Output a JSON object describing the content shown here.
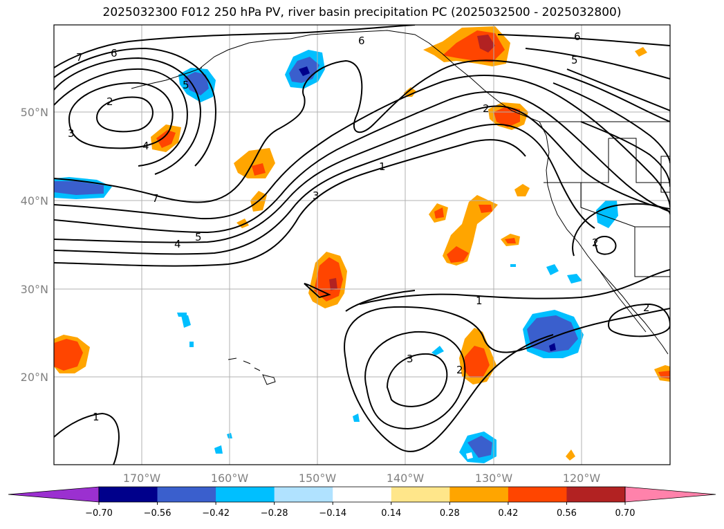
{
  "title": "2025032300 F012 250 hPa PV, river basin precipitation PC (2025032500 - 2025032800)",
  "axes": {
    "lat_labels": [
      "50°N",
      "40°N",
      "30°N",
      "20°N"
    ],
    "lon_labels": [
      "170°W",
      "160°W",
      "150°W",
      "140°W",
      "130°W",
      "120°W"
    ]
  },
  "contour_labels": [
    {
      "text": "7",
      "name": "pv-label-7-nw"
    },
    {
      "text": "6",
      "name": "pv-label-6-nw"
    },
    {
      "text": "2",
      "name": "pv-label-2-low"
    },
    {
      "text": "3",
      "name": "pv-label-3-w"
    },
    {
      "text": "4",
      "name": "pv-label-4-w"
    },
    {
      "text": "5",
      "name": "pv-label-5-aleut"
    },
    {
      "text": "6",
      "name": "pv-label-6-n"
    },
    {
      "text": "7",
      "name": "pv-label-7-mid"
    },
    {
      "text": "4",
      "name": "pv-label-4-mid"
    },
    {
      "text": "5",
      "name": "pv-label-5-mid"
    },
    {
      "text": "3",
      "name": "pv-label-3-jet"
    },
    {
      "text": "1",
      "name": "pv-label-1-jet"
    },
    {
      "text": "2",
      "name": "pv-label-2-coast"
    },
    {
      "text": "6",
      "name": "pv-label-6-ne"
    },
    {
      "text": "5",
      "name": "pv-label-5-ne"
    },
    {
      "text": "2",
      "name": "pv-label-2-cal"
    },
    {
      "text": "1",
      "name": "pv-label-1-sub"
    },
    {
      "text": "3",
      "name": "pv-label-3-sub"
    },
    {
      "text": "2",
      "name": "pv-label-2-sub"
    },
    {
      "text": "2",
      "name": "pv-label-2-mex"
    },
    {
      "text": "1",
      "name": "pv-label-1-sw"
    }
  ],
  "colorbar": {
    "ticks": [
      "−0.70",
      "−0.56",
      "−0.42",
      "−0.28",
      "−0.14",
      "0.14",
      "0.28",
      "0.42",
      "0.56",
      "0.70"
    ],
    "colors": [
      "#9b30d0",
      "#00008b",
      "#3a5fcd",
      "#00bfff",
      "#b0e2ff",
      "#ffffff",
      "#ffe68a",
      "#ffa500",
      "#ff4500",
      "#b22222",
      "#ff82ab"
    ]
  },
  "colors": {
    "neg_dark": "#00008b",
    "neg_mid": "#3a5fcd",
    "neg_light": "#00bfff",
    "neg_pale": "#b0e2ff",
    "pos_pale": "#ffe68a",
    "pos_mid": "#ffa500",
    "pos_strong": "#ff4500",
    "pos_dark": "#b22222"
  }
}
